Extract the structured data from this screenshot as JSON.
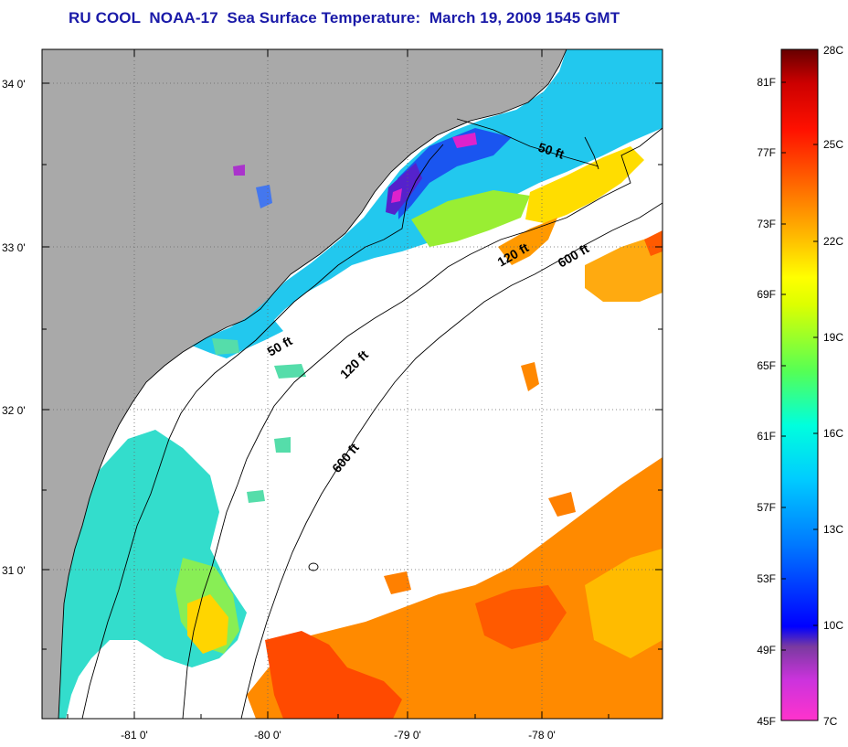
{
  "title": "RU COOL  NOAA-17  Sea Surface Temperature:  March 19, 2009 1545 GMT",
  "map": {
    "lat_labels": [
      "34 0'",
      "33 0'",
      "32 0'",
      "31 0'"
    ],
    "lon_labels": [
      "-81 0'",
      "-80 0'",
      "-79 0'",
      "-78 0'"
    ],
    "contours": [
      {
        "label": "50 ft"
      },
      {
        "label": "120 ft"
      },
      {
        "label": "600 ft"
      },
      {
        "label": "50 ft"
      },
      {
        "label": "120 ft"
      },
      {
        "label": "600 ft"
      }
    ]
  },
  "colorbar": {
    "fahrenheit": [
      "81F",
      "77F",
      "73F",
      "69F",
      "65F",
      "61F",
      "57F",
      "53F",
      "49F",
      "45F"
    ],
    "celsius": [
      "28C",
      "25C",
      "22C",
      "19C",
      "16C",
      "13C",
      "10C",
      "7C"
    ],
    "colors": [
      "#ff33cc",
      "#8a2be2",
      "#0000ff",
      "#00aaff",
      "#00ffff",
      "#66ff66",
      "#ffff00",
      "#ffaa00",
      "#ff4400",
      "#ff0000",
      "#8b0000"
    ]
  }
}
